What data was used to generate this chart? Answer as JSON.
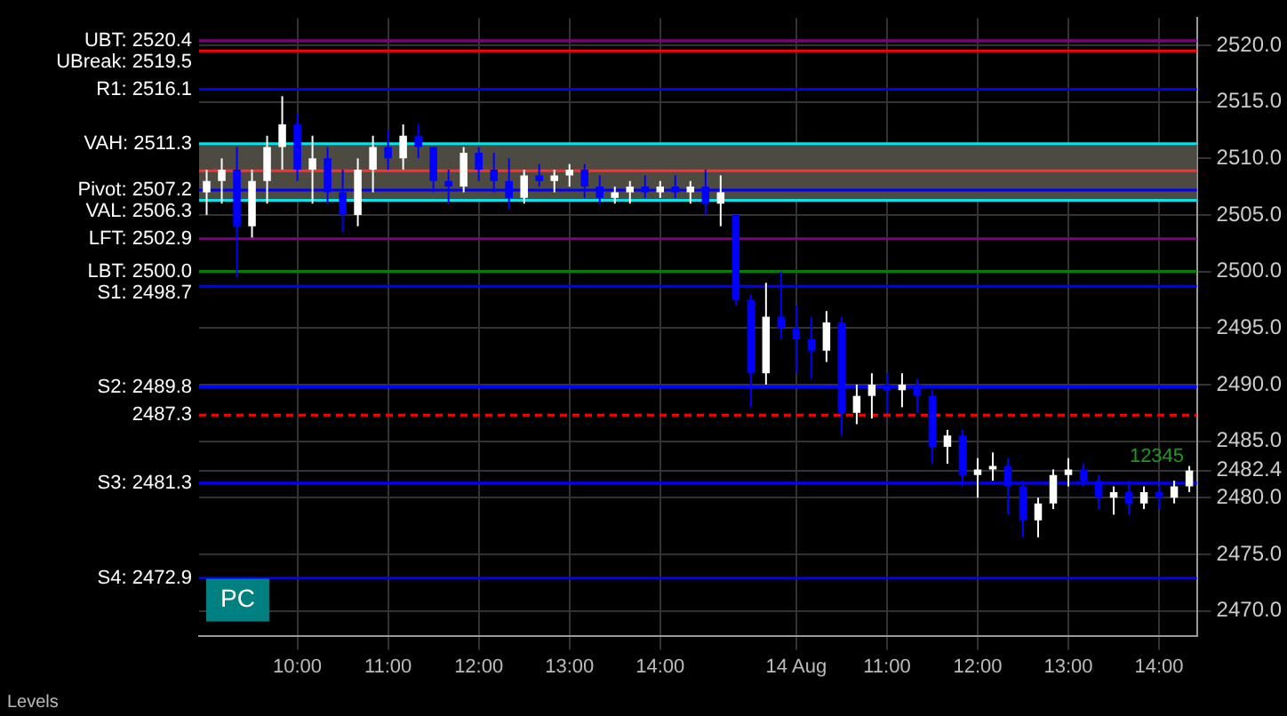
{
  "chart_data": {
    "type": "candlestick",
    "categories": [
      null,
      null,
      null,
      null,
      null,
      null,
      "10:00",
      null,
      null,
      null,
      null,
      null,
      "11:00",
      null,
      null,
      null,
      null,
      null,
      "12:00",
      null,
      null,
      null,
      null,
      null,
      "13:00",
      null,
      null,
      null,
      null,
      null,
      "14:00",
      null,
      null,
      null,
      null,
      null,
      null,
      null,
      null,
      "14 Aug",
      null,
      null,
      null,
      null,
      null,
      "11:00",
      null,
      null,
      null,
      null,
      null,
      "12:00",
      null,
      null,
      null,
      null,
      null,
      "13:00",
      null,
      null,
      null,
      null,
      null,
      "14:00",
      null,
      null
    ],
    "ohlc": [
      [
        2507,
        2509,
        2505,
        2508
      ],
      [
        2508,
        2510,
        2506,
        2509
      ],
      [
        2509,
        2511,
        2499.5,
        2504
      ],
      [
        2504,
        2509,
        2503,
        2508
      ],
      [
        2508,
        2512,
        2506,
        2511
      ],
      [
        2511,
        2515.5,
        2509,
        2513
      ],
      [
        2513,
        2514,
        2508,
        2509
      ],
      [
        2509,
        2512,
        2506,
        2510
      ],
      [
        2510,
        2511,
        2506,
        2507
      ],
      [
        2507,
        2509,
        2503.5,
        2505
      ],
      [
        2505,
        2510,
        2504,
        2509
      ],
      [
        2509,
        2512,
        2507,
        2511
      ],
      [
        2511,
        2512.5,
        2509,
        2510
      ],
      [
        2510,
        2513,
        2509,
        2512
      ],
      [
        2512,
        2513,
        2510,
        2511
      ],
      [
        2511,
        2511,
        2507,
        2508
      ],
      [
        2508,
        2509,
        2506,
        2507.5
      ],
      [
        2507.5,
        2511,
        2507,
        2510.5
      ],
      [
        2510.5,
        2511,
        2508,
        2509
      ],
      [
        2509,
        2510.5,
        2507,
        2508
      ],
      [
        2508,
        2510,
        2505.5,
        2506.5
      ],
      [
        2506.5,
        2509,
        2506,
        2508.5
      ],
      [
        2508.5,
        2509.5,
        2507.5,
        2508
      ],
      [
        2508,
        2509,
        2507,
        2508.5
      ],
      [
        2508.5,
        2509.5,
        2507.5,
        2509
      ],
      [
        2509,
        2509.5,
        2506.5,
        2507.5
      ],
      [
        2507.5,
        2508.5,
        2506,
        2506.5
      ],
      [
        2506.5,
        2507.5,
        2506,
        2507
      ],
      [
        2507,
        2508,
        2506,
        2507.5
      ],
      [
        2507.5,
        2508.5,
        2506.5,
        2507
      ],
      [
        2507,
        2508,
        2506.5,
        2507.5
      ],
      [
        2507.5,
        2508.5,
        2506.5,
        2507
      ],
      [
        2507,
        2508,
        2506,
        2507.5
      ],
      [
        2507.5,
        2509,
        2505,
        2506
      ],
      [
        2506,
        2508.5,
        2504,
        2507
      ],
      [
        2505,
        2505,
        2497,
        2497.5
      ],
      [
        2497.5,
        2498,
        2488,
        2491
      ],
      [
        2491,
        2499,
        2490,
        2496
      ],
      [
        2496,
        2500,
        2494,
        2495
      ],
      [
        2495,
        2497,
        2491,
        2494
      ],
      [
        2494,
        2496,
        2490.5,
        2493
      ],
      [
        2493,
        2496.5,
        2492,
        2495.5
      ],
      [
        2495.5,
        2496,
        2485.5,
        2487.5
      ],
      [
        2487.5,
        2490,
        2486.5,
        2489
      ],
      [
        2489,
        2491,
        2487,
        2490
      ],
      [
        2490,
        2491,
        2487.5,
        2489.5
      ],
      [
        2489.5,
        2491,
        2488,
        2490
      ],
      [
        2490,
        2490.5,
        2487.5,
        2489
      ],
      [
        2489,
        2489.5,
        2483,
        2484.5
      ],
      [
        2484.5,
        2486,
        2483,
        2485.5
      ],
      [
        2485.5,
        2486,
        2481,
        2482
      ],
      [
        2482,
        2483.5,
        2480,
        2482.5
      ],
      [
        2482.5,
        2484,
        2481.5,
        2482.8
      ],
      [
        2482.8,
        2483.5,
        2478.5,
        2481
      ],
      [
        2481,
        2481.5,
        2476.5,
        2478
      ],
      [
        2478,
        2480,
        2476.5,
        2479.5
      ],
      [
        2479.5,
        2482.5,
        2479,
        2482
      ],
      [
        2482,
        2483.5,
        2481,
        2482.5
      ],
      [
        2482.5,
        2483,
        2481,
        2481.5
      ],
      [
        2481.5,
        2482,
        2479,
        2480
      ],
      [
        2480,
        2481,
        2478.5,
        2480.5
      ],
      [
        2480.5,
        2481.5,
        2478.5,
        2479.5
      ],
      [
        2479.5,
        2481,
        2479,
        2480.5
      ],
      [
        2480.5,
        2481,
        2479,
        2480
      ],
      [
        2480,
        2481.5,
        2479.5,
        2481
      ],
      [
        2481,
        2482.8,
        2480.5,
        2482.4
      ]
    ],
    "colors": [
      "#ffffff",
      "#ffffff",
      "#0000ff",
      "#ffffff",
      "#ffffff",
      "#ffffff",
      "#0000ff",
      "#ffffff",
      "#0000ff",
      "#0000ff",
      "#ffffff",
      "#ffffff",
      "#0000ff",
      "#ffffff",
      "#0000ff",
      "#0000ff",
      "#0000ff",
      "#ffffff",
      "#0000ff",
      "#0000ff",
      "#0000ff",
      "#ffffff",
      "#0000ff",
      "#ffffff",
      "#ffffff",
      "#0000ff",
      "#0000ff",
      "#ffffff",
      "#ffffff",
      "#0000ff",
      "#ffffff",
      "#0000ff",
      "#ffffff",
      "#0000ff",
      "#ffffff",
      "#0000ff",
      "#0000ff",
      "#ffffff",
      "#0000ff",
      "#0000ff",
      "#0000ff",
      "#ffffff",
      "#0000ff",
      "#ffffff",
      "#ffffff",
      "#0000ff",
      "#ffffff",
      "#0000ff",
      "#0000ff",
      "#ffffff",
      "#0000ff",
      "#ffffff",
      "#ffffff",
      "#0000ff",
      "#0000ff",
      "#ffffff",
      "#ffffff",
      "#ffffff",
      "#0000ff",
      "#0000ff",
      "#ffffff",
      "#0000ff",
      "#ffffff",
      "#0000ff",
      "#ffffff",
      "#ffffff"
    ],
    "ylim": [
      2467.8,
      2522.4
    ],
    "yticks": [
      {
        "value": 2470,
        "label": "2470.0"
      },
      {
        "value": 2475,
        "label": "2475.0"
      },
      {
        "value": 2480,
        "label": "2480.0"
      },
      {
        "value": 2482.4,
        "label": "2482.4"
      },
      {
        "value": 2485,
        "label": "2485.0"
      },
      {
        "value": 2490,
        "label": "2490.0"
      },
      {
        "value": 2495,
        "label": "2495.0"
      },
      {
        "value": 2500,
        "label": "2500.0"
      },
      {
        "value": 2505,
        "label": "2505.0"
      },
      {
        "value": 2510,
        "label": "2510.0"
      },
      {
        "value": 2515,
        "label": "2515.0"
      },
      {
        "value": 2520,
        "label": "2520.0"
      }
    ],
    "grid": true,
    "legend": false,
    "bands": [
      {
        "axis": "y",
        "from": 2506.3,
        "to": 2511.3,
        "color": "#4d4a42"
      }
    ],
    "ref_lines": [
      {
        "axis": "y",
        "value": 2520.4,
        "label": "UBT: 2520.4",
        "color": "#800080"
      },
      {
        "axis": "y",
        "value": 2519.5,
        "label": "UBreak: 2519.5",
        "color": "#ff0000"
      },
      {
        "axis": "y",
        "value": 2516.1,
        "label": "R1: 2516.1",
        "color": "#0000ff"
      },
      {
        "axis": "y",
        "value": 2511.3,
        "label": "VAH: 2511.3",
        "color": "#00e5ee"
      },
      {
        "axis": "y",
        "value": 2508.9,
        "color": "#ff3030"
      },
      {
        "axis": "y",
        "value": 2507.2,
        "label": "Pivot: 2507.2",
        "color": "#0000ff"
      },
      {
        "axis": "y",
        "value": 2506.3,
        "label": "VAL: 2506.3",
        "color": "#00e5ee"
      },
      {
        "axis": "y",
        "value": 2502.9,
        "label": "LFT: 2502.9",
        "color": "#800080"
      },
      {
        "axis": "y",
        "value": 2500.0,
        "label": "LBT: 2500.0",
        "color": "#008000"
      },
      {
        "axis": "y",
        "value": 2498.7,
        "label": "S1: 2498.7",
        "color": "#0000ff"
      },
      {
        "axis": "y",
        "value": 2489.8,
        "label": "S2: 2489.8",
        "color": "#0000ff"
      },
      {
        "axis": "y",
        "value": 2487.3,
        "label": "2487.3",
        "color": "#ff0000",
        "line_style": "dashed"
      },
      {
        "axis": "y",
        "value": 2481.3,
        "label": "S3: 2481.3",
        "color": "#0000ff"
      },
      {
        "axis": "y",
        "value": 2472.9,
        "label": "S4: 2472.9",
        "color": "#0000ff"
      }
    ],
    "annotations": [
      "12345",
      "PC",
      "Levels"
    ]
  }
}
